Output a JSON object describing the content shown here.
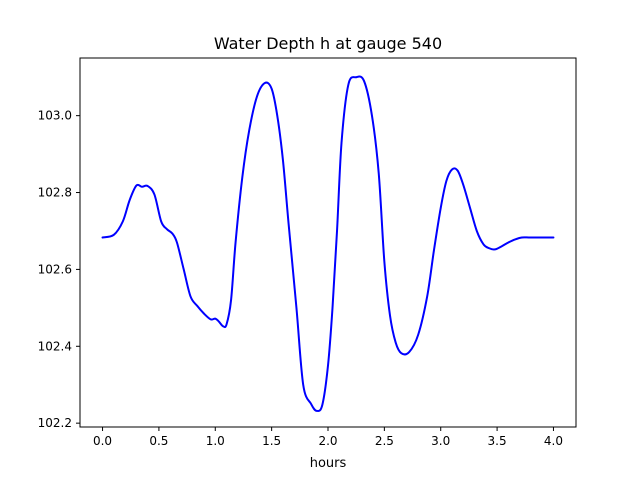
{
  "chart_data": {
    "type": "line",
    "title": "Water Depth h at gauge 540",
    "xlabel": "hours",
    "ylabel": "",
    "xlim": [
      -0.2,
      4.2
    ],
    "ylim": [
      102.19,
      103.15
    ],
    "xticks": [
      0.0,
      0.5,
      1.0,
      1.5,
      2.0,
      2.5,
      3.0,
      3.5,
      4.0
    ],
    "xtick_labels": [
      "0.0",
      "0.5",
      "1.0",
      "1.5",
      "2.0",
      "2.5",
      "3.0",
      "3.5",
      "4.0"
    ],
    "yticks": [
      102.2,
      102.4,
      102.6,
      102.8,
      103.0
    ],
    "ytick_labels": [
      "102.2",
      "102.4",
      "102.6",
      "102.8",
      "103.0"
    ],
    "grid": false,
    "series": [
      {
        "name": "",
        "color": "#0000ff",
        "x": [
          0.0,
          0.1,
          0.18,
          0.24,
          0.3,
          0.35,
          0.4,
          0.46,
          0.52,
          0.57,
          0.62,
          0.66,
          0.72,
          0.78,
          0.84,
          0.9,
          0.96,
          1.0,
          1.03,
          1.07,
          1.1,
          1.14,
          1.18,
          1.24,
          1.3,
          1.37,
          1.44,
          1.5,
          1.55,
          1.6,
          1.65,
          1.72,
          1.78,
          1.85,
          1.9,
          1.95,
          2.0,
          2.04,
          2.08,
          2.12,
          2.18,
          2.25,
          2.32,
          2.39,
          2.45,
          2.5,
          2.55,
          2.6,
          2.65,
          2.72,
          2.8,
          2.88,
          2.94,
          3.0,
          3.05,
          3.1,
          3.15,
          3.2,
          3.26,
          3.32,
          3.38,
          3.43,
          3.48,
          3.54,
          3.6,
          3.66,
          3.72,
          3.78,
          3.82,
          3.88,
          3.94,
          4.0
        ],
        "y": [
          102.683,
          102.69,
          102.725,
          102.78,
          102.818,
          102.815,
          102.817,
          102.795,
          102.725,
          102.705,
          102.693,
          102.67,
          102.6,
          102.53,
          102.505,
          102.485,
          102.47,
          102.472,
          102.465,
          102.452,
          102.457,
          102.52,
          102.67,
          102.84,
          102.96,
          103.05,
          103.085,
          103.07,
          103.0,
          102.885,
          102.72,
          102.5,
          102.3,
          102.25,
          102.232,
          102.248,
          102.35,
          102.5,
          102.7,
          102.93,
          103.08,
          103.1,
          103.09,
          103.0,
          102.85,
          102.62,
          102.48,
          102.41,
          102.382,
          102.385,
          102.43,
          102.53,
          102.65,
          102.76,
          102.83,
          102.86,
          102.857,
          102.82,
          102.76,
          102.7,
          102.665,
          102.655,
          102.652,
          102.66,
          102.67,
          102.678,
          102.683,
          102.683,
          102.683,
          102.683,
          102.683,
          102.683
        ]
      }
    ]
  }
}
